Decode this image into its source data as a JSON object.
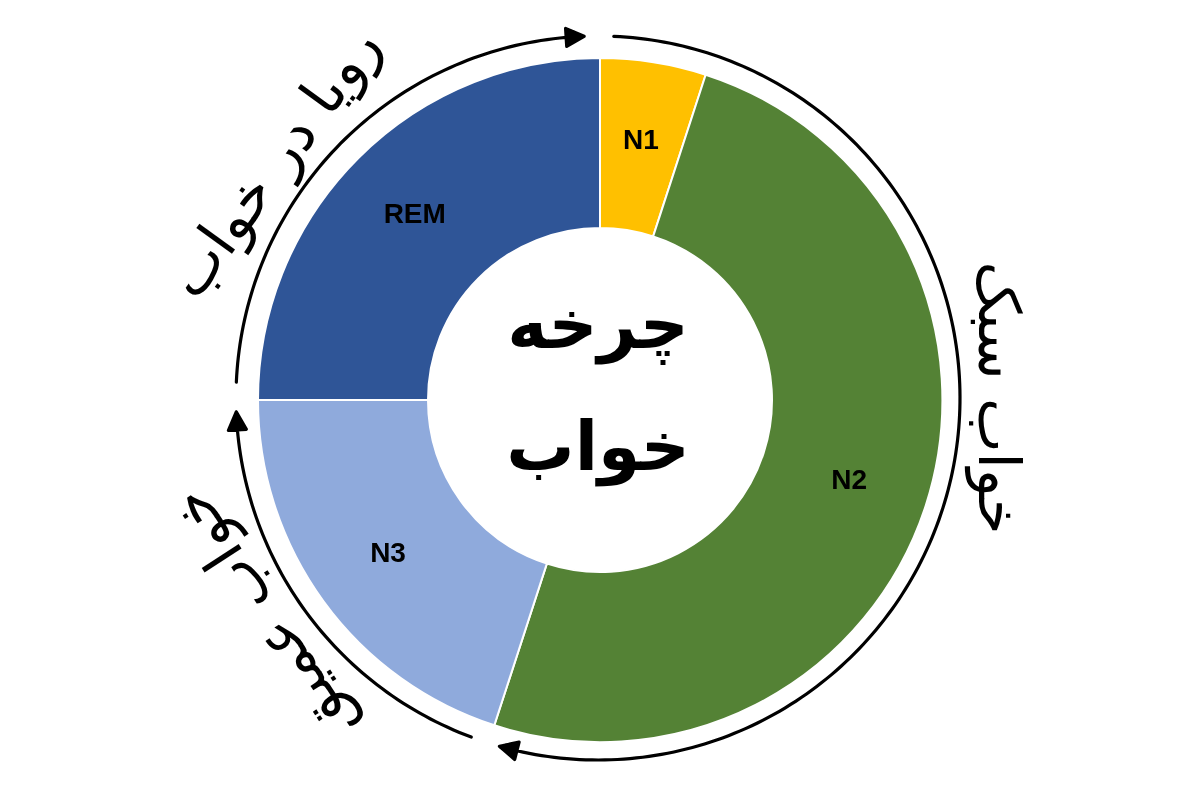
{
  "chart_data": {
    "type": "donut",
    "title": "چرخه خواب",
    "categories": [
      "N1",
      "N2",
      "N3",
      "REM"
    ],
    "values": [
      5,
      50,
      20,
      25
    ],
    "colors": [
      "#ffc000",
      "#548235",
      "#8faadc",
      "#2f5597"
    ],
    "annotations": [
      "رویا در خواب",
      "خواب سبک",
      "خواب عمیق"
    ],
    "legend": false
  }
}
